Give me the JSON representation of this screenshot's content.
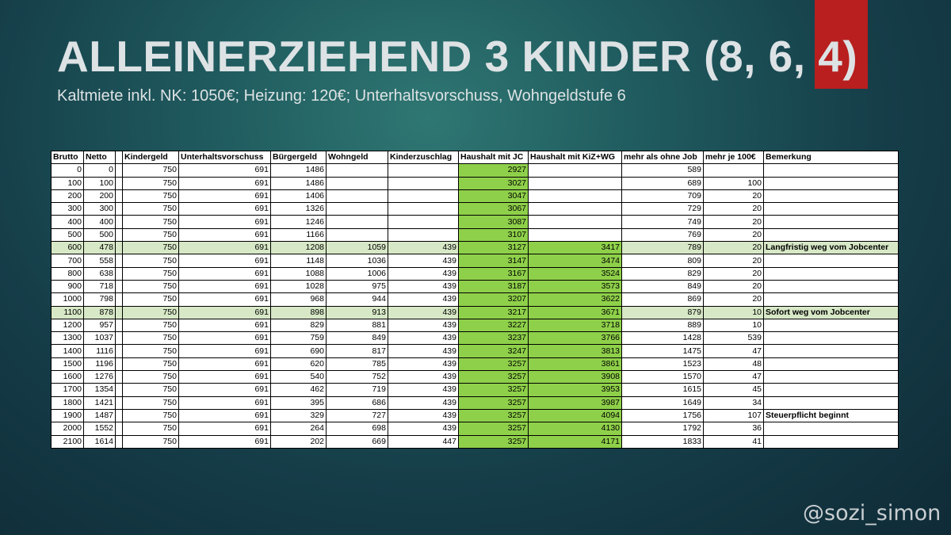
{
  "title": "ALLEINERZIEHEND 3 KINDER (8, 6, 4)",
  "subtitle": "Kaltmiete inkl. NK: 1050€; Heizung: 120€; Unterhaltsvorschuss, Wohngeldstufe 6",
  "watermark": "@sozi_simon",
  "colors": {
    "accent_red": "#b81f1e",
    "highlight_green": "#8fd04a",
    "row_highlight": "#d7e8c6"
  },
  "table": {
    "headers": [
      "Brutto",
      "Netto",
      "",
      "Kindergeld",
      "Unterhaltsvorschuss",
      "Bürgergeld",
      "Wohngeld",
      "Kinderzuschlag",
      "Haushalt mit JC",
      "Haushalt mit KiZ+WG",
      "mehr als ohne Job",
      "mehr je 100€",
      "Bemerkung"
    ],
    "rows": [
      {
        "cells": [
          "0",
          "0",
          "",
          "750",
          "691",
          "1486",
          "",
          "",
          "2927",
          "",
          "589",
          "",
          ""
        ],
        "hl": false
      },
      {
        "cells": [
          "100",
          "100",
          "",
          "750",
          "691",
          "1486",
          "",
          "",
          "3027",
          "",
          "689",
          "100",
          ""
        ],
        "hl": false
      },
      {
        "cells": [
          "200",
          "200",
          "",
          "750",
          "691",
          "1406",
          "",
          "",
          "3047",
          "",
          "709",
          "20",
          ""
        ],
        "hl": false
      },
      {
        "cells": [
          "300",
          "300",
          "",
          "750",
          "691",
          "1326",
          "",
          "",
          "3067",
          "",
          "729",
          "20",
          ""
        ],
        "hl": false
      },
      {
        "cells": [
          "400",
          "400",
          "",
          "750",
          "691",
          "1246",
          "",
          "",
          "3087",
          "",
          "749",
          "20",
          ""
        ],
        "hl": false
      },
      {
        "cells": [
          "500",
          "500",
          "",
          "750",
          "691",
          "1166",
          "",
          "",
          "3107",
          "",
          "769",
          "20",
          ""
        ],
        "hl": false
      },
      {
        "cells": [
          "600",
          "478",
          "",
          "750",
          "691",
          "1208",
          "1059",
          "439",
          "3127",
          "3417",
          "789",
          "20",
          "Langfristig weg vom Jobcenter"
        ],
        "hl": true
      },
      {
        "cells": [
          "700",
          "558",
          "",
          "750",
          "691",
          "1148",
          "1036",
          "439",
          "3147",
          "3474",
          "809",
          "20",
          ""
        ],
        "hl": false
      },
      {
        "cells": [
          "800",
          "638",
          "",
          "750",
          "691",
          "1088",
          "1006",
          "439",
          "3167",
          "3524",
          "829",
          "20",
          ""
        ],
        "hl": false
      },
      {
        "cells": [
          "900",
          "718",
          "",
          "750",
          "691",
          "1028",
          "975",
          "439",
          "3187",
          "3573",
          "849",
          "20",
          ""
        ],
        "hl": false
      },
      {
        "cells": [
          "1000",
          "798",
          "",
          "750",
          "691",
          "968",
          "944",
          "439",
          "3207",
          "3622",
          "869",
          "20",
          ""
        ],
        "hl": false
      },
      {
        "cells": [
          "1100",
          "878",
          "",
          "750",
          "691",
          "898",
          "913",
          "439",
          "3217",
          "3671",
          "879",
          "10",
          "Sofort weg vom Jobcenter"
        ],
        "hl": true
      },
      {
        "cells": [
          "1200",
          "957",
          "",
          "750",
          "691",
          "829",
          "881",
          "439",
          "3227",
          "3718",
          "889",
          "10",
          ""
        ],
        "hl": false
      },
      {
        "cells": [
          "1300",
          "1037",
          "",
          "750",
          "691",
          "759",
          "849",
          "439",
          "3237",
          "3766",
          "1428",
          "539",
          ""
        ],
        "hl": false
      },
      {
        "cells": [
          "1400",
          "1116",
          "",
          "750",
          "691",
          "690",
          "817",
          "439",
          "3247",
          "3813",
          "1475",
          "47",
          ""
        ],
        "hl": false
      },
      {
        "cells": [
          "1500",
          "1196",
          "",
          "750",
          "691",
          "620",
          "785",
          "439",
          "3257",
          "3861",
          "1523",
          "48",
          ""
        ],
        "hl": false
      },
      {
        "cells": [
          "1600",
          "1276",
          "",
          "750",
          "691",
          "540",
          "752",
          "439",
          "3257",
          "3908",
          "1570",
          "47",
          ""
        ],
        "hl": false
      },
      {
        "cells": [
          "1700",
          "1354",
          "",
          "750",
          "691",
          "462",
          "719",
          "439",
          "3257",
          "3953",
          "1615",
          "45",
          ""
        ],
        "hl": false
      },
      {
        "cells": [
          "1800",
          "1421",
          "",
          "750",
          "691",
          "395",
          "686",
          "439",
          "3257",
          "3987",
          "1649",
          "34",
          ""
        ],
        "hl": false
      },
      {
        "cells": [
          "1900",
          "1487",
          "",
          "750",
          "691",
          "329",
          "727",
          "439",
          "3257",
          "4094",
          "1756",
          "107",
          "Steuerpflicht beginnt"
        ],
        "hl": false
      },
      {
        "cells": [
          "2000",
          "1552",
          "",
          "750",
          "691",
          "264",
          "698",
          "439",
          "3257",
          "4130",
          "1792",
          "36",
          ""
        ],
        "hl": false
      },
      {
        "cells": [
          "2100",
          "1614",
          "",
          "750",
          "691",
          "202",
          "669",
          "447",
          "3257",
          "4171",
          "1833",
          "41",
          ""
        ],
        "hl": false
      }
    ]
  }
}
